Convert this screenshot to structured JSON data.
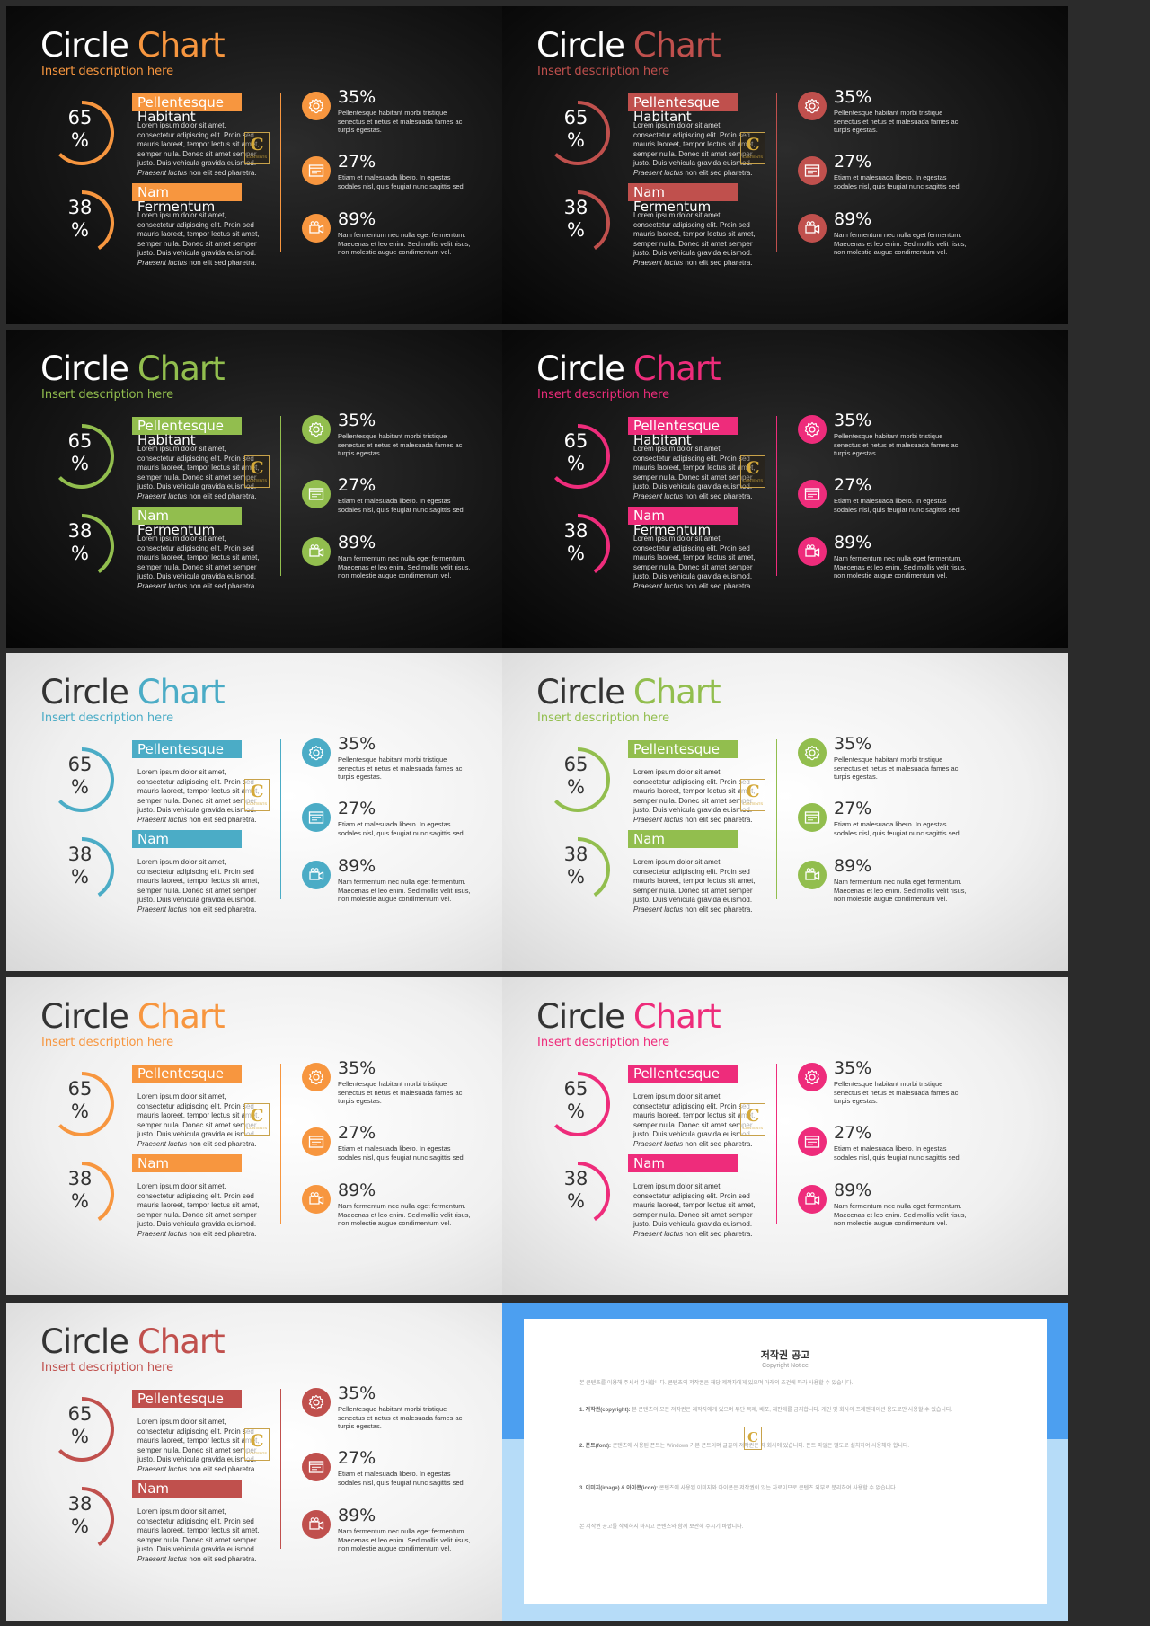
{
  "shared": {
    "title_word1": "Circle",
    "title_word2": "Chart",
    "subtitle": "Insert description here",
    "ring1": {
      "label": "Pellentesque",
      "sub": "Habitant",
      "percent_line1": "65",
      "percent_line2": "%",
      "value": 65
    },
    "ring2": {
      "label": "Nam",
      "sub": "Fermentum",
      "percent_line1": "38",
      "percent_line2": "%",
      "value": 38
    },
    "body_text_start": "Lorem ipsum dolor sit amet, consectetur adipiscing elit. Proin sed mauris laoreet, tempor lectus sit amet, semper nulla. Donec sit amet semper justo. Duis vehicula gravida euismod.",
    "body_text_em": "Praesent luctus",
    "body_text_end": "non elit sed pharetra.",
    "stats": [
      {
        "value": "35%",
        "icon": "gear-icon",
        "desc": "Pellentesque habitant morbi tristique senectus et netus et malesuada fames ac turpis egestas."
      },
      {
        "value": "27%",
        "icon": "browser-window-icon",
        "desc": "Etiam et malesuada libero. In egestas sodales nisl, quis feugiat nunc sagittis sed."
      },
      {
        "value": "89%",
        "icon": "video-camera-icon",
        "desc": "Nam fermentum nec nulla eget fermentum. Maecenas et leo enim. Sed mollis velit risus, non molestie augue condimentum vel."
      }
    ],
    "logo_letter": "C",
    "logo_text": "CONTENTS"
  },
  "slides": [
    {
      "theme": "dark",
      "accent": "#f7963f"
    },
    {
      "theme": "dark",
      "accent": "#c0504d"
    },
    {
      "theme": "dark",
      "accent": "#92be4e"
    },
    {
      "theme": "dark",
      "accent": "#ee2c7b"
    },
    {
      "theme": "light",
      "accent": "#4bacc6"
    },
    {
      "theme": "light",
      "accent": "#92be4e"
    },
    {
      "theme": "light",
      "accent": "#f7963f"
    },
    {
      "theme": "light",
      "accent": "#ee2c7b"
    },
    {
      "theme": "light",
      "accent": "#c0504d"
    }
  ],
  "copyright": {
    "title": "저작권 공고",
    "subtitle": "Copyright Notice",
    "intro": "본 콘텐츠를 이용해 주셔서 감사합니다. 콘텐츠의 저작권은 해당 제작자에게 있으며 아래의 조건에 따라 사용할 수 있습니다.",
    "items": [
      {
        "head": "1. 저작권(copyright):",
        "text": "본 콘텐츠의 모든 저작권은 제작자에게 있으며 무단 복제, 배포, 재판매를 금지합니다. 개인 및 회사의 프레젠테이션 용도로만 사용할 수 있습니다."
      },
      {
        "head": "2. 폰트(font):",
        "text": "콘텐츠에 사용된 폰트는 Windows 기본 폰트이며 글꼴의 저작권은 각 회사에 있습니다. 폰트 파일은 별도로 설치하여 사용해야 합니다."
      },
      {
        "head": "3. 이미지(image) & 아이콘(icon):",
        "text": "콘텐츠에 사용된 이미지와 아이콘은 저작권이 있는 자료이므로 콘텐츠 외부로 분리하여 사용할 수 없습니다."
      }
    ],
    "outro": "본 저작권 공고를 삭제하지 마시고 콘텐츠와 함께 보관해 주시기 바랍니다."
  }
}
